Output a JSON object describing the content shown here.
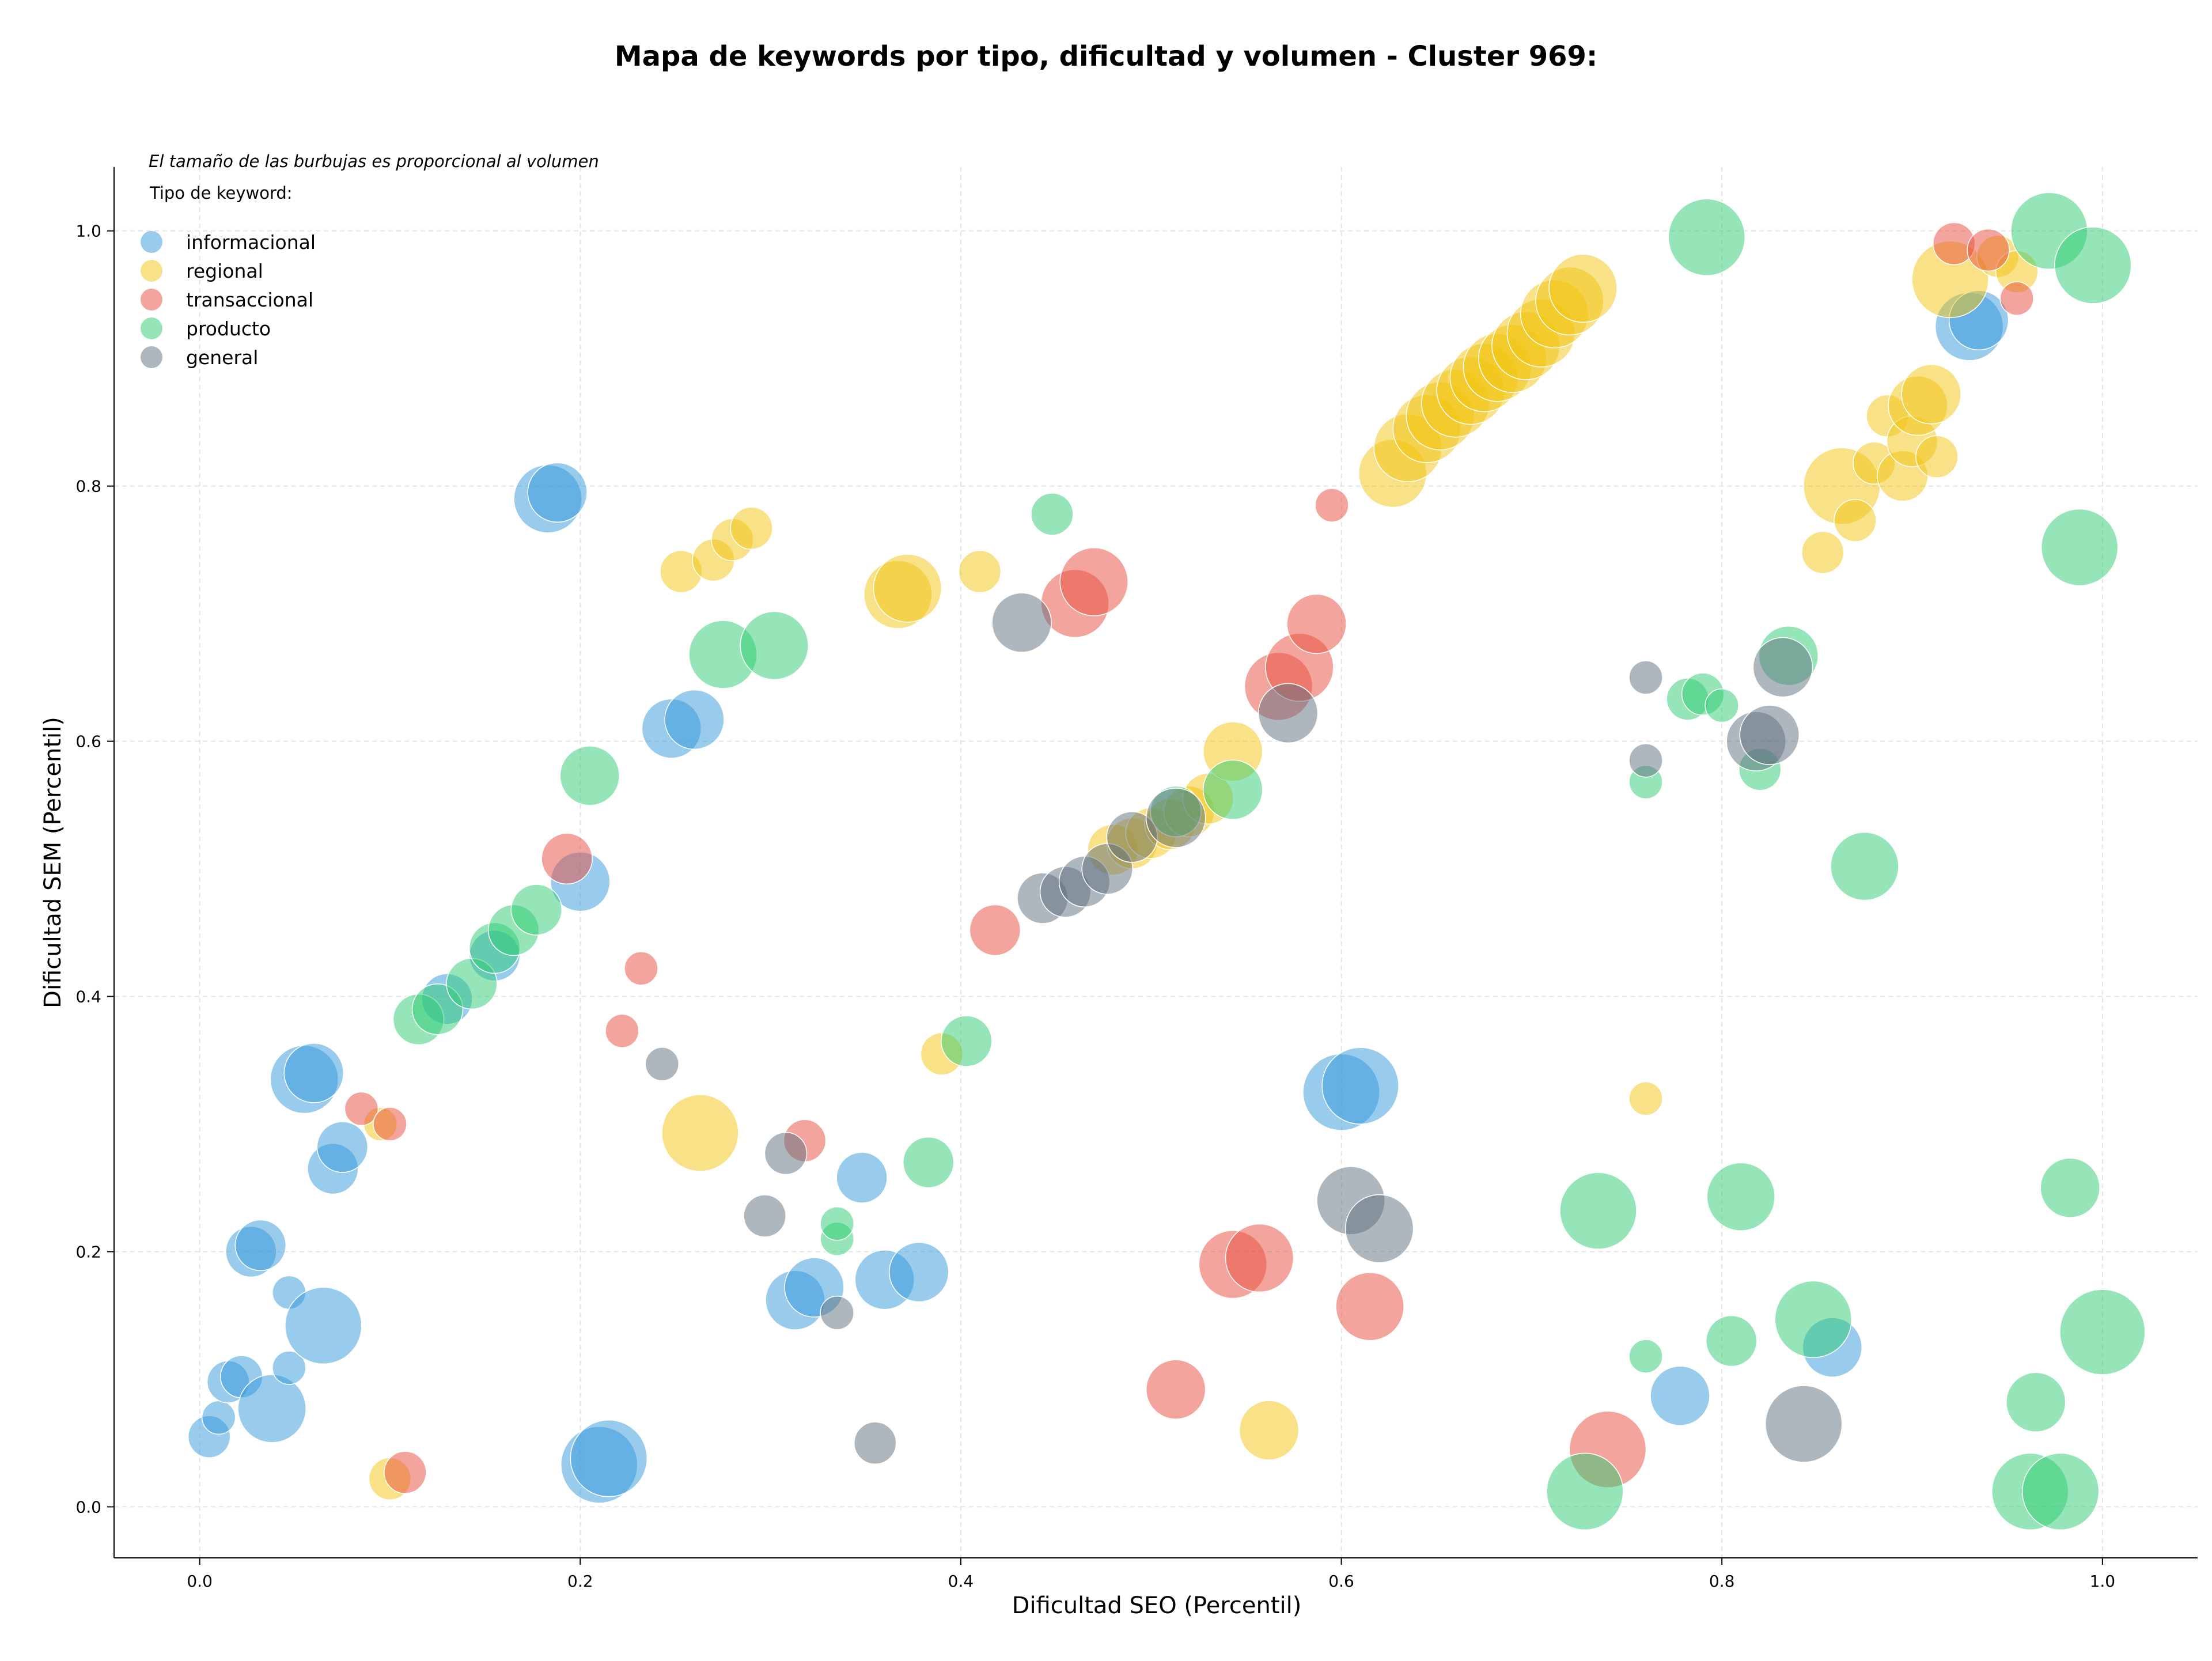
{
  "chart_data": {
    "type": "scatter",
    "title": "Mapa de keywords por tipo, dificultad y volumen - Cluster 969:",
    "note": "El tamaño de las burbujas es proporcional al volumen",
    "xlabel": "Dificultad SEO (Percentil)",
    "ylabel": "Dificultad SEM (Percentil)",
    "xlim": [
      -0.045,
      1.05
    ],
    "ylim": [
      -0.04,
      1.05
    ],
    "xticks": [
      "0.0",
      "0.2",
      "0.4",
      "0.6",
      "0.8",
      "1.0"
    ],
    "yticks": [
      "0.0",
      "0.2",
      "0.4",
      "0.6",
      "0.8",
      "1.0"
    ],
    "grid": true,
    "legend": {
      "title": "Tipo de keyword:",
      "placement": "top-left"
    },
    "series": [
      {
        "name": "informacional",
        "color": "#3498db",
        "points": [
          [
            0.005,
            0.055,
            3
          ],
          [
            0.01,
            0.07,
            2
          ],
          [
            0.015,
            0.098,
            3
          ],
          [
            0.022,
            0.102,
            3
          ],
          [
            0.038,
            0.077,
            6
          ],
          [
            0.047,
            0.109,
            2
          ],
          [
            0.047,
            0.168,
            2
          ],
          [
            0.027,
            0.2,
            4
          ],
          [
            0.032,
            0.205,
            4
          ],
          [
            0.065,
            0.142,
            7
          ],
          [
            0.07,
            0.265,
            4
          ],
          [
            0.075,
            0.282,
            4
          ],
          [
            0.055,
            0.335,
            6
          ],
          [
            0.06,
            0.34,
            5
          ],
          [
            0.183,
            0.79,
            6
          ],
          [
            0.188,
            0.795,
            5
          ],
          [
            0.2,
            0.49,
            5
          ],
          [
            0.248,
            0.61,
            5
          ],
          [
            0.26,
            0.617,
            5
          ],
          [
            0.13,
            0.398,
            4
          ],
          [
            0.155,
            0.432,
            4
          ],
          [
            0.21,
            0.033,
            7
          ],
          [
            0.215,
            0.038,
            7
          ],
          [
            0.313,
            0.162,
            5
          ],
          [
            0.323,
            0.172,
            5
          ],
          [
            0.348,
            0.258,
            4
          ],
          [
            0.36,
            0.178,
            5
          ],
          [
            0.378,
            0.184,
            5
          ],
          [
            0.6,
            0.325,
            7
          ],
          [
            0.61,
            0.33,
            7
          ],
          [
            0.778,
            0.087,
            5
          ],
          [
            0.858,
            0.125,
            5
          ],
          [
            0.93,
            0.925,
            6
          ],
          [
            0.935,
            0.93,
            5
          ]
        ]
      },
      {
        "name": "regional",
        "color": "#f1c40f",
        "points": [
          [
            0.1,
            0.022,
            3
          ],
          [
            0.095,
            0.3,
            2
          ],
          [
            0.253,
            0.733,
            3
          ],
          [
            0.27,
            0.742,
            3
          ],
          [
            0.28,
            0.758,
            3
          ],
          [
            0.29,
            0.767,
            3
          ],
          [
            0.263,
            0.293,
            7
          ],
          [
            0.367,
            0.715,
            6
          ],
          [
            0.372,
            0.72,
            6
          ],
          [
            0.41,
            0.733,
            3
          ],
          [
            0.39,
            0.355,
            3
          ],
          [
            0.48,
            0.515,
            4
          ],
          [
            0.49,
            0.52,
            4
          ],
          [
            0.5,
            0.528,
            4
          ],
          [
            0.51,
            0.535,
            4
          ],
          [
            0.52,
            0.545,
            4
          ],
          [
            0.53,
            0.555,
            4
          ],
          [
            0.543,
            0.592,
            5
          ],
          [
            0.562,
            0.06,
            5
          ],
          [
            0.627,
            0.81,
            6
          ],
          [
            0.635,
            0.83,
            6
          ],
          [
            0.645,
            0.845,
            6
          ],
          [
            0.652,
            0.855,
            6
          ],
          [
            0.66,
            0.865,
            6
          ],
          [
            0.668,
            0.875,
            6
          ],
          [
            0.675,
            0.885,
            6
          ],
          [
            0.682,
            0.893,
            6
          ],
          [
            0.69,
            0.9,
            6
          ],
          [
            0.697,
            0.91,
            6
          ],
          [
            0.705,
            0.92,
            6
          ],
          [
            0.712,
            0.935,
            6
          ],
          [
            0.72,
            0.945,
            6
          ],
          [
            0.727,
            0.955,
            6
          ],
          [
            0.76,
            0.32,
            2
          ],
          [
            0.853,
            0.748,
            3
          ],
          [
            0.863,
            0.8,
            7
          ],
          [
            0.87,
            0.773,
            3
          ],
          [
            0.88,
            0.818,
            3
          ],
          [
            0.887,
            0.855,
            3
          ],
          [
            0.895,
            0.808,
            4
          ],
          [
            0.9,
            0.835,
            4
          ],
          [
            0.903,
            0.863,
            5
          ],
          [
            0.91,
            0.872,
            5
          ],
          [
            0.913,
            0.823,
            3
          ],
          [
            0.92,
            0.962,
            7
          ],
          [
            0.945,
            0.98,
            3
          ],
          [
            0.955,
            0.968,
            3
          ]
        ]
      },
      {
        "name": "transaccional",
        "color": "#e74c3c",
        "points": [
          [
            0.085,
            0.312,
            2
          ],
          [
            0.1,
            0.3,
            2
          ],
          [
            0.108,
            0.027,
            3
          ],
          [
            0.193,
            0.508,
            4
          ],
          [
            0.222,
            0.373,
            2
          ],
          [
            0.232,
            0.422,
            2
          ],
          [
            0.318,
            0.287,
            3
          ],
          [
            0.418,
            0.452,
            4
          ],
          [
            0.46,
            0.708,
            6
          ],
          [
            0.47,
            0.725,
            6
          ],
          [
            0.513,
            0.092,
            5
          ],
          [
            0.543,
            0.19,
            6
          ],
          [
            0.557,
            0.195,
            6
          ],
          [
            0.567,
            0.643,
            6
          ],
          [
            0.578,
            0.658,
            6
          ],
          [
            0.587,
            0.692,
            5
          ],
          [
            0.595,
            0.785,
            2
          ],
          [
            0.615,
            0.157,
            6
          ],
          [
            0.74,
            0.045,
            7
          ],
          [
            0.922,
            0.99,
            3
          ],
          [
            0.94,
            0.985,
            3
          ],
          [
            0.955,
            0.947,
            2
          ]
        ]
      },
      {
        "name": "producto",
        "color": "#2ecc71",
        "points": [
          [
            0.115,
            0.382,
            4
          ],
          [
            0.125,
            0.39,
            4
          ],
          [
            0.143,
            0.41,
            4
          ],
          [
            0.155,
            0.438,
            4
          ],
          [
            0.165,
            0.452,
            4
          ],
          [
            0.177,
            0.468,
            4
          ],
          [
            0.205,
            0.573,
            5
          ],
          [
            0.275,
            0.668,
            6
          ],
          [
            0.302,
            0.675,
            6
          ],
          [
            0.335,
            0.21,
            2
          ],
          [
            0.335,
            0.222,
            2
          ],
          [
            0.383,
            0.27,
            4
          ],
          [
            0.403,
            0.365,
            4
          ],
          [
            0.448,
            0.778,
            3
          ],
          [
            0.513,
            0.545,
            4
          ],
          [
            0.543,
            0.562,
            5
          ],
          [
            0.728,
            0.012,
            7
          ],
          [
            0.735,
            0.232,
            7
          ],
          [
            0.76,
            0.118,
            2
          ],
          [
            0.76,
            0.568,
            2
          ],
          [
            0.782,
            0.633,
            3
          ],
          [
            0.79,
            0.637,
            3
          ],
          [
            0.8,
            0.628,
            2
          ],
          [
            0.792,
            0.995,
            7
          ],
          [
            0.805,
            0.13,
            4
          ],
          [
            0.81,
            0.243,
            6
          ],
          [
            0.82,
            0.578,
            3
          ],
          [
            0.835,
            0.667,
            5
          ],
          [
            0.848,
            0.147,
            7
          ],
          [
            0.875,
            0.502,
            6
          ],
          [
            0.962,
            0.012,
            7
          ],
          [
            0.965,
            0.082,
            5
          ],
          [
            0.972,
            1.0,
            7
          ],
          [
            0.978,
            0.012,
            7
          ],
          [
            0.983,
            0.25,
            5
          ],
          [
            0.988,
            0.752,
            7
          ],
          [
            0.995,
            0.973,
            7
          ],
          [
            1.0,
            0.137,
            8
          ]
        ]
      },
      {
        "name": "general",
        "color": "#5d6d7e",
        "points": [
          [
            0.243,
            0.347,
            2
          ],
          [
            0.297,
            0.228,
            3
          ],
          [
            0.308,
            0.277,
            3
          ],
          [
            0.335,
            0.152,
            2
          ],
          [
            0.355,
            0.05,
            3
          ],
          [
            0.432,
            0.693,
            5
          ],
          [
            0.443,
            0.477,
            4
          ],
          [
            0.455,
            0.482,
            4
          ],
          [
            0.465,
            0.49,
            4
          ],
          [
            0.477,
            0.5,
            4
          ],
          [
            0.49,
            0.525,
            4
          ],
          [
            0.513,
            0.54,
            5
          ],
          [
            0.572,
            0.622,
            5
          ],
          [
            0.605,
            0.24,
            6
          ],
          [
            0.62,
            0.218,
            6
          ],
          [
            0.76,
            0.65,
            2
          ],
          [
            0.76,
            0.585,
            2
          ],
          [
            0.818,
            0.6,
            5
          ],
          [
            0.825,
            0.605,
            5
          ],
          [
            0.832,
            0.658,
            5
          ],
          [
            0.843,
            0.065,
            7
          ]
        ]
      }
    ]
  }
}
